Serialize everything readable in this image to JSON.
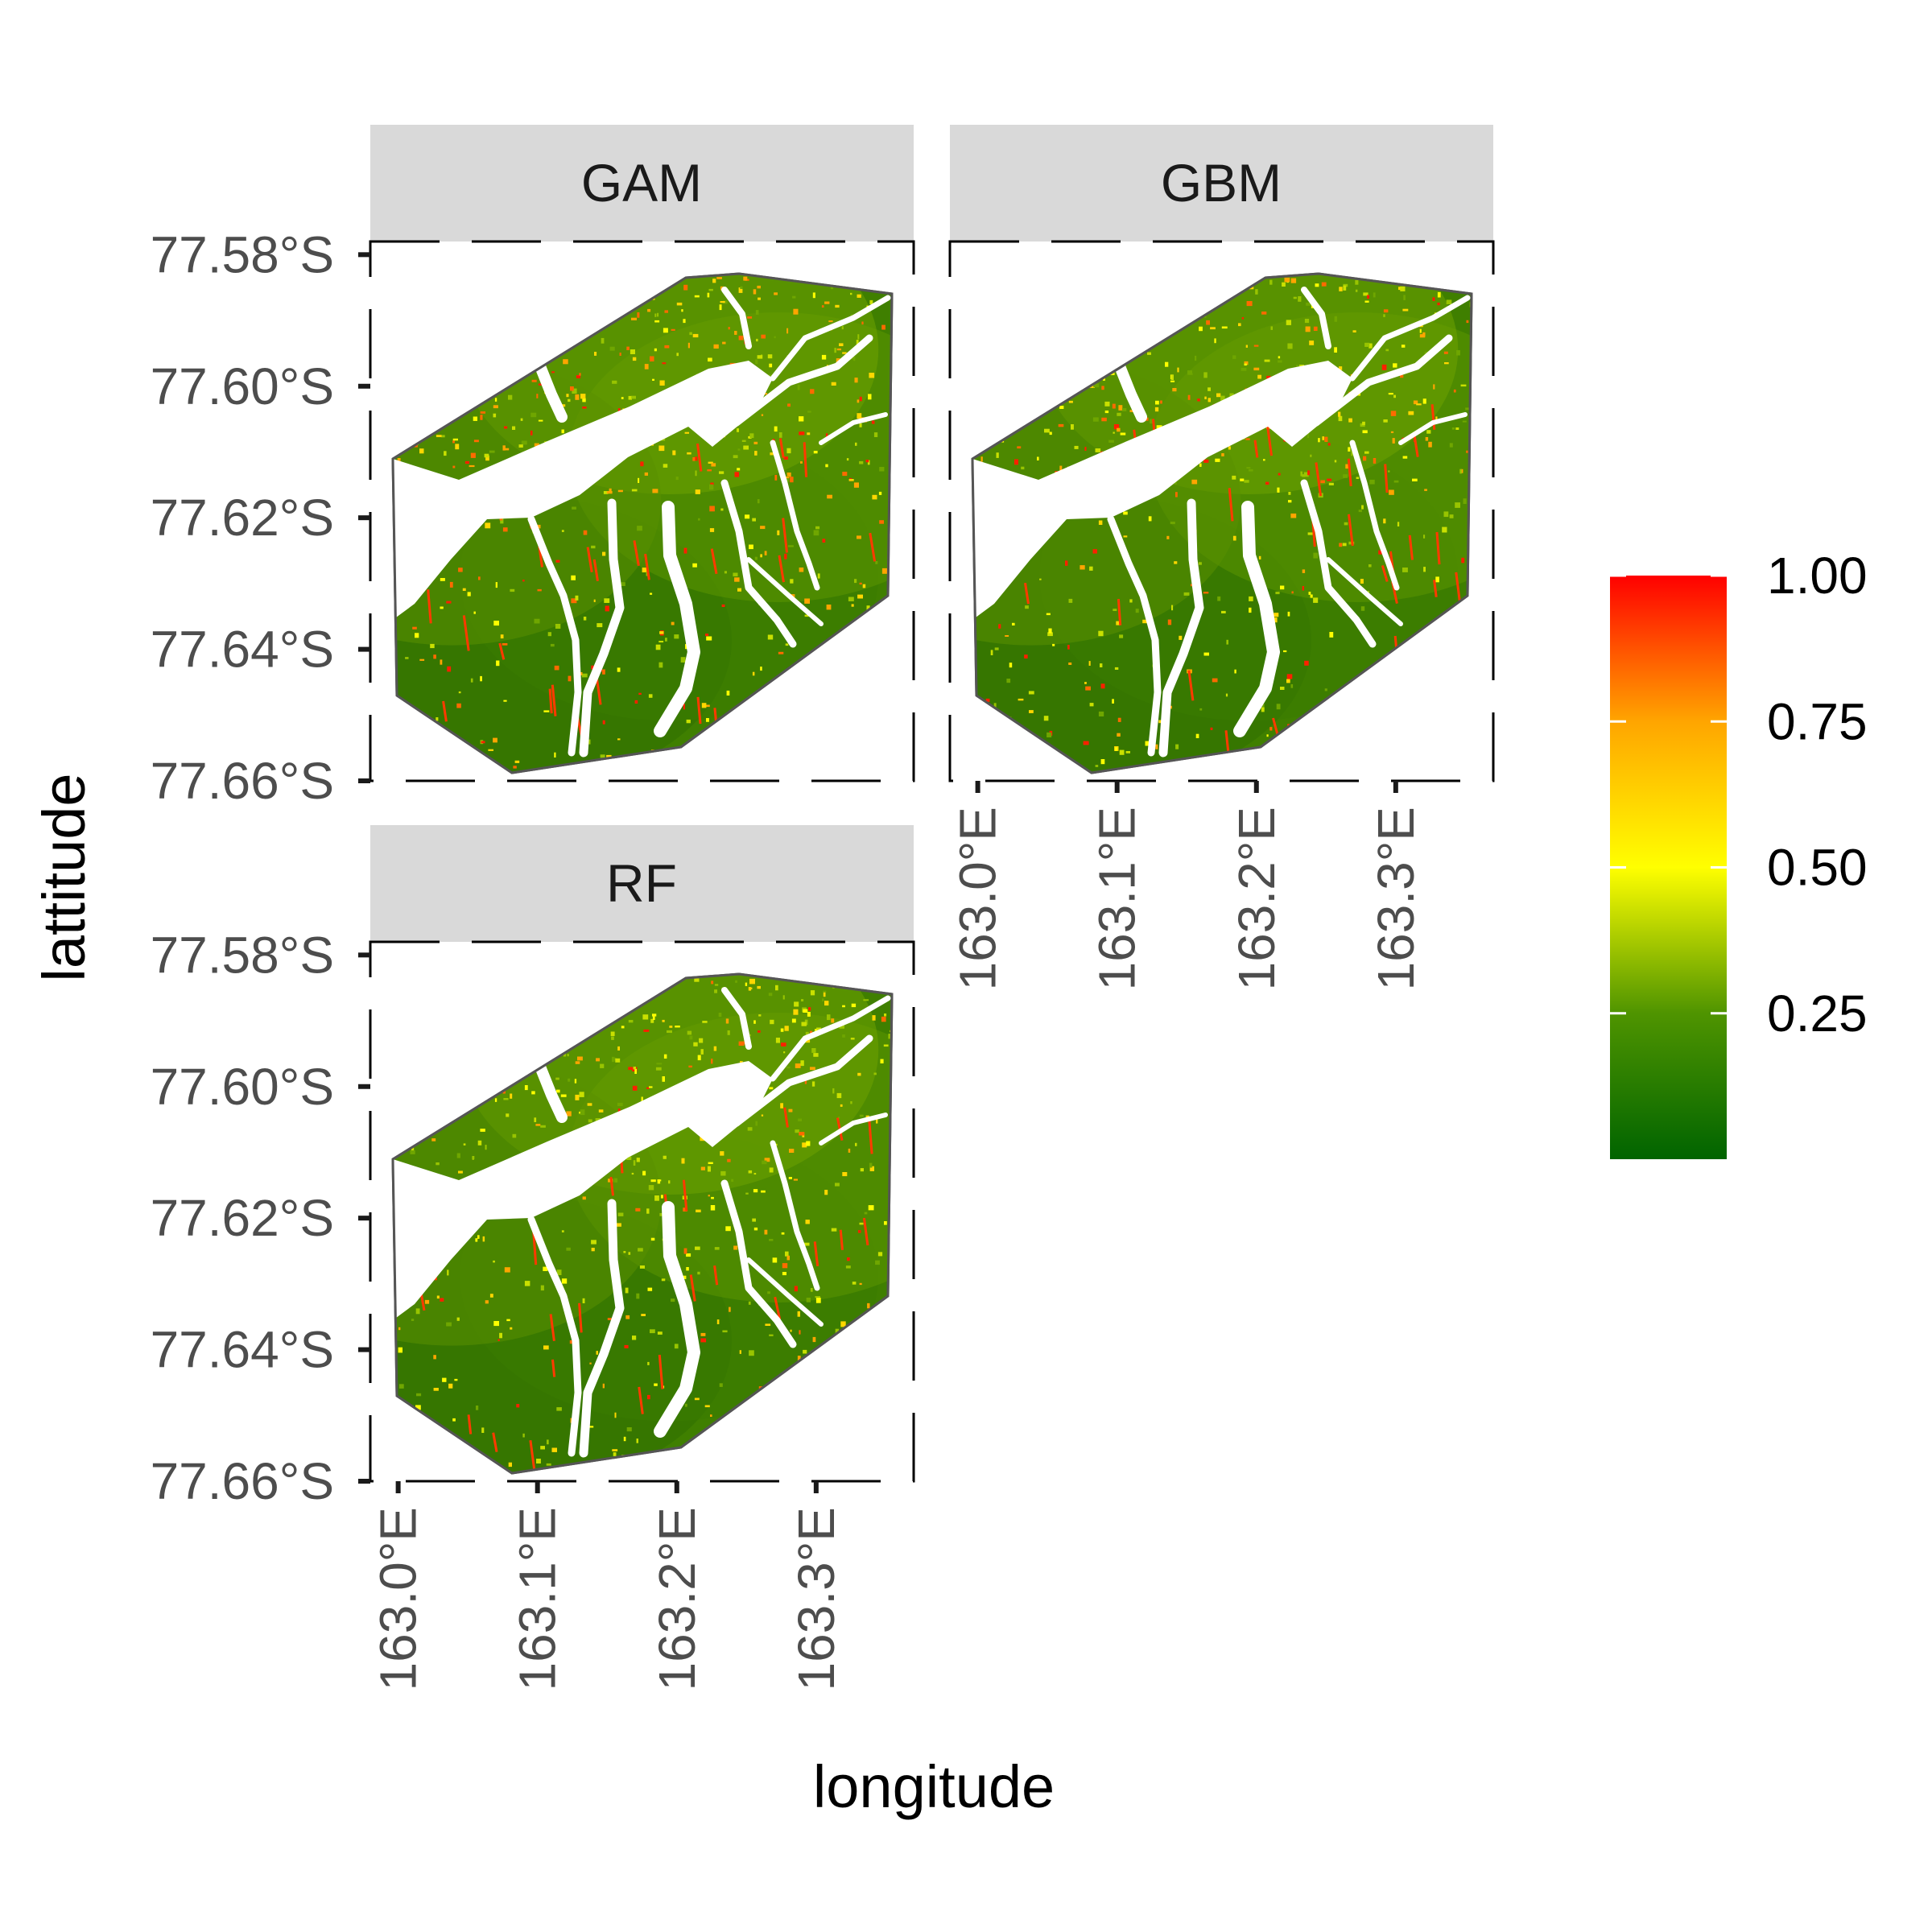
{
  "chart_data": {
    "type": "heatmap",
    "title": "",
    "xlabel": "longitude",
    "ylabel": "lattitude",
    "facets": [
      "GAM",
      "GBM",
      "RF"
    ],
    "x_ticks": [
      "163.0°E",
      "163.1°E",
      "163.2°E",
      "163.3°E"
    ],
    "x_tick_values": [
      163.0,
      163.1,
      163.2,
      163.3
    ],
    "y_ticks": [
      "77.58°S",
      "77.60°S",
      "77.62°S",
      "77.64°S",
      "77.66°S"
    ],
    "y_tick_values": [
      -77.58,
      -77.6,
      -77.62,
      -77.64,
      -77.66
    ],
    "xlim": [
      162.98,
      163.37
    ],
    "ylim": [
      -77.66,
      -77.578
    ],
    "legend": {
      "position": "right",
      "min": 0,
      "max": 1,
      "ticks": [
        "0.25",
        "0.50",
        "0.75",
        "1.00"
      ],
      "tick_values": [
        0.25,
        0.5,
        0.75,
        1.0
      ],
      "colors": [
        "#006400",
        "#ffff00",
        "#ffa500",
        "#ff0000"
      ]
    }
  }
}
